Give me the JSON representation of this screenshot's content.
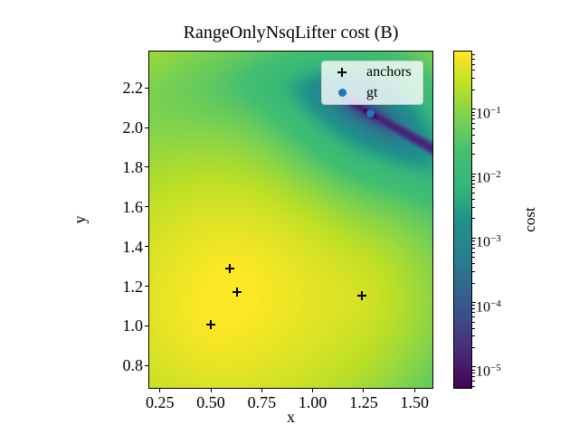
{
  "title": "RangeOnlyNsqLifter cost (B)",
  "axes": {
    "xlabel": "x",
    "ylabel": "y",
    "x_tick_labels": [
      "0.25",
      "0.50",
      "0.75",
      "1.00",
      "1.25",
      "1.50"
    ],
    "y_tick_labels": [
      "2.2",
      "2.0",
      "1.8",
      "1.6",
      "1.4",
      "1.2",
      "1.0",
      "0.8"
    ]
  },
  "legend": {
    "items": [
      {
        "label": "anchors",
        "marker": "plus",
        "color": "#000000"
      },
      {
        "label": "gt",
        "marker": "circle",
        "color": "#1f77b4"
      }
    ]
  },
  "colorbar": {
    "label": "cost",
    "scale": "log",
    "vmin": 4.75e-06,
    "vmax": 0.786,
    "major_tick_exponents": [
      -1,
      -2,
      -3,
      -4,
      -5
    ],
    "colormap": "viridis",
    "viridis_stops": [
      "#440154",
      "#482878",
      "#3e4989",
      "#31688e",
      "#26828e",
      "#21918c",
      "#35b779",
      "#44bf70",
      "#7ad151",
      "#bddf26",
      "#fde725"
    ]
  },
  "chart_data": {
    "type": "heatmap",
    "title": "RangeOnlyNsqLifter cost (B)",
    "xlabel": "x",
    "ylabel": "y",
    "x_range": [
      0.198,
      1.5874
    ],
    "y_range": [
      0.687,
      2.3836
    ],
    "x_ticks": [
      0.25,
      0.5,
      0.75,
      1.0,
      1.25,
      1.5
    ],
    "y_ticks": [
      2.2,
      2.0,
      1.8,
      1.6,
      1.4,
      1.2,
      1.0,
      0.8
    ],
    "anchors": [
      [
        0.594,
        1.289
      ],
      [
        0.63,
        1.17
      ],
      [
        0.5,
        1.007
      ],
      [
        1.241,
        1.154
      ]
    ],
    "gt": [
      1.2825,
      2.071
    ],
    "description": "Log-scaled range-only localization cost surface over (x,y); bright yellow high-cost region near the anchor cluster, dark low-cost valley running through gt toward lower right",
    "color_scale": {
      "type": "log",
      "vmin": 4.75e-06,
      "vmax": 0.786,
      "colormap": "viridis"
    },
    "legend_position": "upper right",
    "colorbar_position": "right"
  }
}
